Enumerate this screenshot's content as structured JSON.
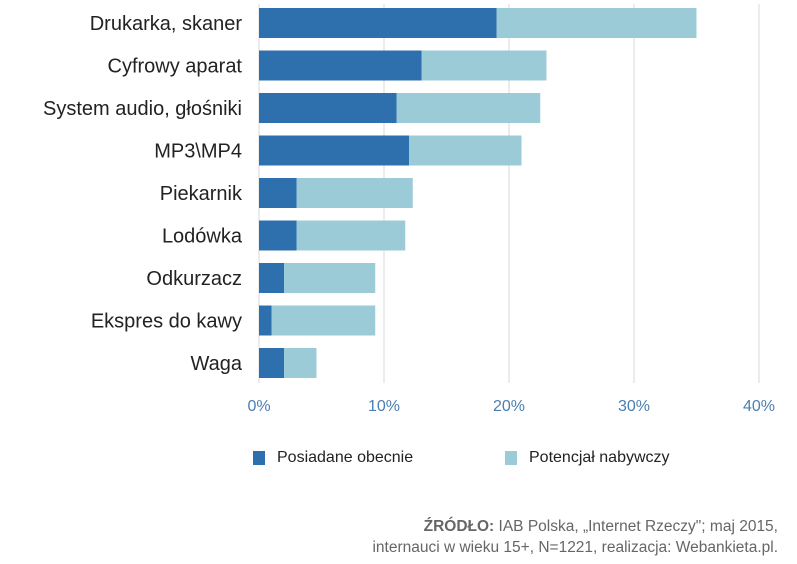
{
  "chart_data": {
    "type": "bar",
    "orientation": "horizontal",
    "stacked": true,
    "categories": [
      "Drukarka, skaner",
      "Cyfrowy aparat",
      "System audio, głośniki",
      "MP3\\MP4",
      "Piekarnik",
      "Lodówka",
      "Odkurzacz",
      "Ekspres do kawy",
      "Waga"
    ],
    "series": [
      {
        "name": "Posiadane obecnie",
        "color": "#2e6fad",
        "values": [
          19,
          13,
          11,
          12,
          3,
          3,
          2,
          1,
          2
        ]
      },
      {
        "name": "Potencjał nabywczy",
        "color": "#9ccbd8",
        "values": [
          16,
          10,
          11.5,
          9,
          9.3,
          8.7,
          7.3,
          8.3,
          2.6
        ]
      }
    ],
    "xlim": [
      0,
      40
    ],
    "x_ticks": [
      "0%",
      "10%",
      "20%",
      "30%",
      "40%"
    ],
    "grid": "vertical",
    "legend_position": "bottom"
  },
  "source": {
    "label": "ŹRÓDŁO:",
    "line1": "IAB Polska, „Internet Rzeczy\"; maj 2015,",
    "line2": "internauci w wieku 15+, N=1221, realizacja: Webankieta.pl."
  }
}
